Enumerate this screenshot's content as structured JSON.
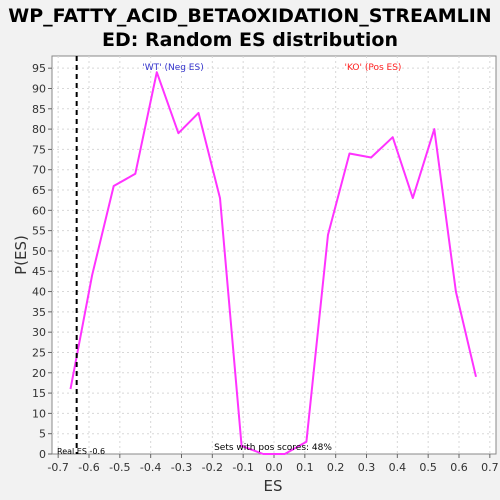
{
  "chart_data": {
    "type": "line",
    "title_lines": [
      "WP_FATTY_ACID_BETAOXIDATION_STREAMLIN",
      "ED: Random ES distribution"
    ],
    "xlabel": "ES",
    "ylabel": "P(ES)",
    "xlim": [
      -0.72,
      0.72
    ],
    "ylim": [
      0,
      98
    ],
    "x_ticks": [
      -0.7,
      -0.6,
      -0.5,
      -0.4,
      -0.3,
      -0.2,
      -0.1,
      0.0,
      0.1,
      0.2,
      0.3,
      0.4,
      0.5,
      0.6,
      0.7
    ],
    "x_tick_labels": [
      "-0.7",
      "-0.6",
      "-0.5",
      "-0.4",
      "-0.3",
      "-0.2",
      "-0.1",
      "0.0",
      "0.1",
      "0.2",
      "0.3",
      "0.4",
      "0.5",
      "0.6",
      "0.7"
    ],
    "y_ticks": [
      0,
      5,
      10,
      15,
      20,
      25,
      30,
      35,
      40,
      45,
      50,
      55,
      60,
      65,
      70,
      75,
      80,
      85,
      90,
      95
    ],
    "y_tick_labels": [
      "0",
      "5",
      "10",
      "15",
      "20",
      "25",
      "30",
      "35",
      "40",
      "45",
      "50",
      "55",
      "60",
      "65",
      "70",
      "75",
      "80",
      "85",
      "90",
      "95"
    ],
    "grid": true,
    "series": [
      {
        "color": "#ff33ff",
        "x": [
          -0.66,
          -0.59,
          -0.52,
          -0.45,
          -0.38,
          -0.31,
          -0.245,
          -0.175,
          -0.105,
          -0.035,
          0.035,
          0.105,
          0.175,
          0.245,
          0.315,
          0.385,
          0.45,
          0.52,
          0.59,
          0.655
        ],
        "y": [
          16,
          44,
          66,
          69,
          94,
          79,
          84,
          63,
          2,
          0,
          0,
          3,
          54,
          74,
          73,
          78,
          63,
          80,
          40,
          19
        ]
      }
    ],
    "real_es": {
      "value": -0.64,
      "label": "Real ES -0.6"
    },
    "annotations": {
      "neg_label": "'WT' (Neg ES)",
      "neg_color": "#3333cc",
      "pos_label": "'KO' (Pos ES)",
      "pos_color": "#ff2222",
      "bottom_note": "Sets with pos scores: 48%"
    }
  }
}
